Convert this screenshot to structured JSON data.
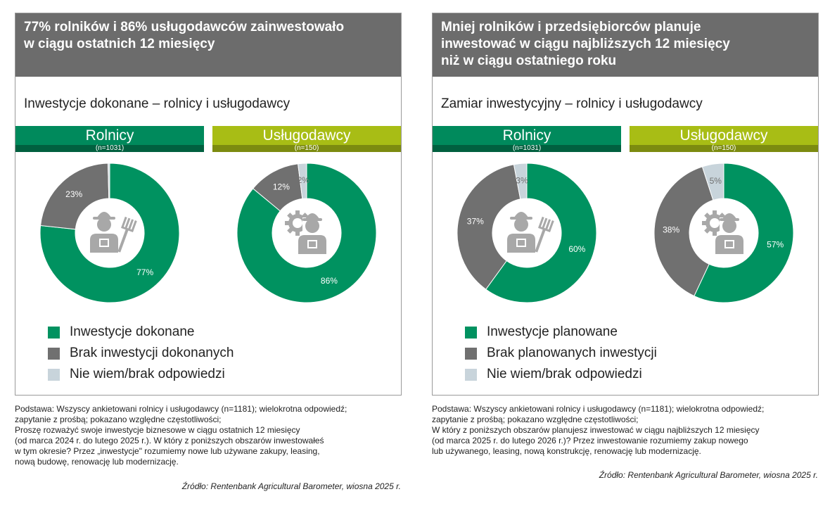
{
  "colors": {
    "green": "#009260",
    "dark_gray": "#707070",
    "light_gray": "#c8d4db",
    "header_bg": "#6c6c6c",
    "lime": "#a8bd15",
    "icon_gray": "#a8a8a8"
  },
  "left": {
    "header_lines": [
      "77% rolników i 86% usługodawców zainwestowało",
      "w ciągu ostatnich 12 miesięcy"
    ],
    "subtitle": "Inwestycje dokonane – rolnicy i usługodawcy",
    "groups": [
      {
        "label": "Rolnicy",
        "n": "(n=1031)"
      },
      {
        "label": "Usługodawcy",
        "n": "(n=150)"
      }
    ],
    "legend": [
      "Inwestycje dokonane",
      "Brak inwestycji dokonanych",
      "Nie wiem/brak odpowiedzi"
    ],
    "footnote_lines": [
      "Podstawa: Wszyscy ankietowani rolnicy i usługodawcy (n=1181); wielokrotna odpowiedź;",
      "zapytanie z prośbą; pokazano względne częstotliwości;",
      "Proszę rozważyć swoje inwestycje biznesowe w ciągu ostatnich 12 miesięcy",
      "(od marca 2024 r. do lutego 2025 r.). W który z poniższych obszarów inwestowałeś",
      "w tym okresie? Przez „inwestycje\" rozumiemy nowe lub używane zakupy, leasing,",
      "nową budowę, renowację lub modernizację."
    ],
    "source": "Źródło: Rentenbank Agricultural Barometer, wiosna 2025 r."
  },
  "right": {
    "header_lines": [
      "Mniej rolników i przedsiębiorców planuje",
      "inwestować w ciągu najbliższych 12 miesięcy",
      "niż w ciągu ostatniego roku"
    ],
    "subtitle": "Zamiar inwestycyjny – rolnicy i usługodawcy",
    "groups": [
      {
        "label": "Rolnicy",
        "n": "(n=1031)"
      },
      {
        "label": "Usługodawcy",
        "n": "(n=150)"
      }
    ],
    "legend": [
      "Inwestycje planowane",
      "Brak planowanych inwestycji",
      "Nie wiem/brak odpowiedzi"
    ],
    "footnote_lines": [
      "Podstawa: Wszyscy ankietowani rolnicy i usługodawcy (n=1181); wielokrotna odpowiedź;",
      "zapytanie z prośbą; pokazano względne częstotliwości;",
      "W który z poniższych obszarów planujesz inwestować w ciągu najbliższych 12 miesięcy",
      "(od marca 2025 r. do lutego 2026 r.)? Przez inwestowanie rozumiemy zakup nowego",
      "lub używanego, leasing, nową konstrukcję, renowację lub modernizację."
    ],
    "source": "Źródło: Rentenbank Agricultural Barometer, wiosna 2025 r."
  },
  "chart_data": [
    {
      "type": "pie",
      "title": "Rolnicy",
      "subtitle": "(n=1031)",
      "icon": "farmer-with-pitchfork-icon",
      "slices": [
        {
          "label": "Inwestycje dokonane",
          "value": 77,
          "display": "77%",
          "color": "#009260"
        },
        {
          "label": "Brak inwestycji dokonanych",
          "value": 23,
          "display": "23%",
          "color": "#707070"
        },
        {
          "label": "Nie wiem/brak odpowiedzi",
          "value": 0.4,
          "display": "",
          "color": "#c8d4db"
        }
      ]
    },
    {
      "type": "pie",
      "title": "Usługodawcy",
      "subtitle": "(n=150)",
      "icon": "worker-with-gear-icon",
      "slices": [
        {
          "label": "Inwestycje dokonane",
          "value": 86,
          "display": "86%",
          "color": "#009260"
        },
        {
          "label": "Brak inwestycji dokonanych",
          "value": 12,
          "display": "12%",
          "color": "#707070"
        },
        {
          "label": "Nie wiem/brak odpowiedzi",
          "value": 2,
          "display": "2%",
          "color": "#c8d4db"
        }
      ]
    },
    {
      "type": "pie",
      "title": "Rolnicy",
      "subtitle": "(n=1031)",
      "icon": "farmer-with-pitchfork-icon",
      "slices": [
        {
          "label": "Inwestycje planowane",
          "value": 60,
          "display": "60%",
          "color": "#009260"
        },
        {
          "label": "Brak planowanych inwestycji",
          "value": 37,
          "display": "37%",
          "color": "#707070"
        },
        {
          "label": "Nie wiem/brak odpowiedzi",
          "value": 3,
          "display": "3%",
          "color": "#c8d4db"
        }
      ]
    },
    {
      "type": "pie",
      "title": "Usługodawcy",
      "subtitle": "(n=150)",
      "icon": "worker-with-gear-icon",
      "slices": [
        {
          "label": "Inwestycje planowane",
          "value": 57,
          "display": "57%",
          "color": "#009260"
        },
        {
          "label": "Brak planowanych inwestycji",
          "value": 38,
          "display": "38%",
          "color": "#707070"
        },
        {
          "label": "Nie wiem/brak odpowiedzi",
          "value": 5,
          "display": "5%",
          "color": "#c8d4db"
        }
      ]
    }
  ]
}
